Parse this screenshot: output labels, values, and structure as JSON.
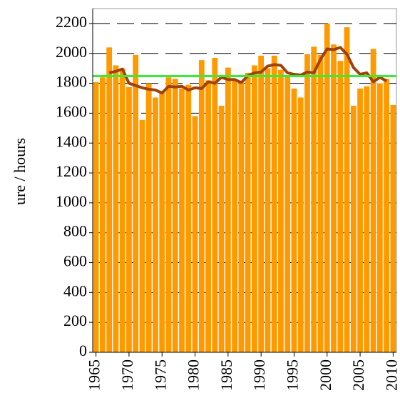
{
  "chart_data": {
    "type": "bar",
    "y_label": "ure / hours",
    "x": [
      1965,
      1966,
      1967,
      1968,
      1969,
      1970,
      1971,
      1972,
      1973,
      1974,
      1975,
      1976,
      1977,
      1978,
      1979,
      1980,
      1981,
      1982,
      1983,
      1984,
      1985,
      1986,
      1987,
      1988,
      1989,
      1990,
      1991,
      1992,
      1993,
      1994,
      1995,
      1996,
      1997,
      1998,
      1999,
      2000,
      2001,
      2002,
      2003,
      2004,
      2005,
      2006,
      2007,
      2008,
      2009,
      2010
    ],
    "series": [
      {
        "type": "bar",
        "color": "#ff9900",
        "values": [
          1808,
          1840,
          2040,
          1920,
          1900,
          1775,
          1990,
          1555,
          1800,
          1705,
          1750,
          1840,
          1830,
          1765,
          1790,
          1580,
          1955,
          1820,
          1970,
          1650,
          1905,
          1830,
          1810,
          1870,
          1920,
          1985,
          1900,
          1985,
          1890,
          1850,
          1765,
          1705,
          1995,
          2045,
          1990,
          2200,
          2060,
          1950,
          2175,
          1650,
          1765,
          1780,
          2030,
          1800,
          1830,
          1655
        ]
      },
      {
        "type": "line",
        "color": "#a0410d",
        "values": [
          null,
          null,
          1870,
          1880,
          1895,
          1800,
          1785,
          1770,
          1760,
          1755,
          1735,
          1780,
          1775,
          1780,
          1755,
          1770,
          1765,
          1810,
          1800,
          1840,
          1825,
          1825,
          1805,
          1850,
          1870,
          1875,
          1915,
          1925,
          1920,
          1870,
          1860,
          1855,
          1875,
          1870,
          1960,
          2030,
          2025,
          2040,
          1995,
          1905,
          1860,
          1870,
          1810,
          1840,
          1815,
          null
        ]
      }
    ],
    "mean_line": 1848,
    "mean_color": "#33ee33",
    "xlim": [
      1964.5,
      2010.5
    ],
    "xticks": [
      1965,
      1970,
      1975,
      1980,
      1985,
      1990,
      1995,
      2000,
      2005,
      2010
    ],
    "ylim": [
      0,
      2300
    ],
    "yticks": [
      0,
      200,
      400,
      600,
      800,
      1000,
      1200,
      1400,
      1600,
      1800,
      2000,
      2200
    ],
    "grid": true
  }
}
